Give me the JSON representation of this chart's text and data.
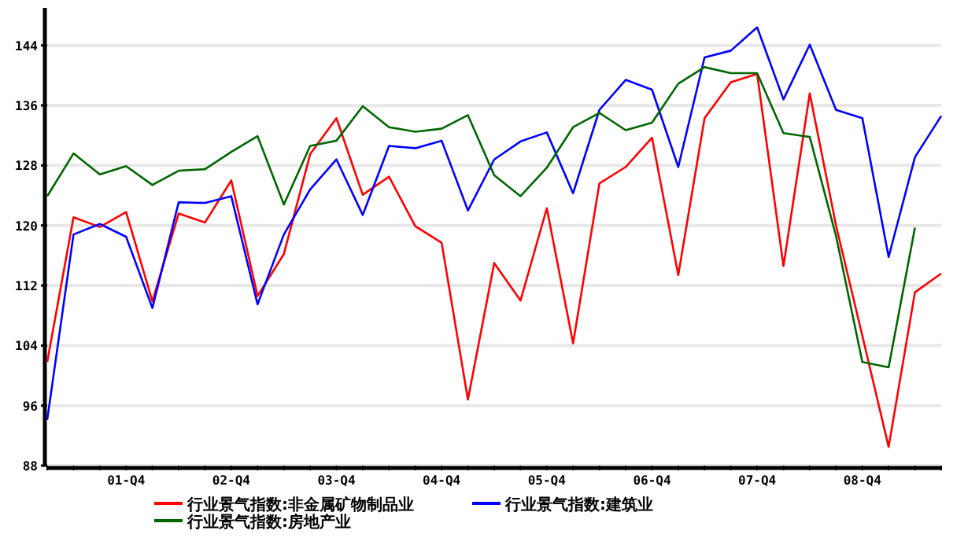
{
  "chart_data": {
    "type": "line",
    "categories": [
      null,
      null,
      null,
      "01-Q4",
      null,
      null,
      null,
      "02-Q4",
      null,
      null,
      null,
      "03-Q4",
      null,
      null,
      null,
      "04-Q4",
      null,
      null,
      null,
      "05-Q4",
      null,
      null,
      null,
      "06-Q4",
      null,
      null,
      null,
      "07-Q4",
      null,
      null,
      null,
      "08-Q4",
      null,
      null,
      null
    ],
    "series": [
      {
        "name": "行业景气指数:非金属矿物制品业",
        "color": "#ff0000",
        "values": [
          101.8,
          121.1,
          119.8,
          121.8,
          109.9,
          121.6,
          120.4,
          126.0,
          110.6,
          116.2,
          129.5,
          134.3,
          124.1,
          126.5,
          119.9,
          117.7,
          96.8,
          115.0,
          110.0,
          122.3,
          104.3,
          125.6,
          127.8,
          131.7,
          113.4,
          134.3,
          139.1,
          140.2,
          114.6,
          137.6,
          120.0,
          105.3,
          90.5,
          111.1,
          113.6
        ]
      },
      {
        "name": "行业景气指数:建筑业",
        "color": "#0000ff",
        "values": [
          94.1,
          118.8,
          120.2,
          118.5,
          109.0,
          123.1,
          123.0,
          123.9,
          109.5,
          118.8,
          124.8,
          128.8,
          121.4,
          130.6,
          130.3,
          131.3,
          122.0,
          128.8,
          131.2,
          132.4,
          124.3,
          135.4,
          139.4,
          138.1,
          127.8,
          142.4,
          143.3,
          146.4,
          136.8,
          144.1,
          135.4,
          134.3,
          115.8,
          129.1,
          134.6
        ]
      },
      {
        "name": "行业景气指数:房地产业",
        "color": "#006600",
        "values": [
          123.9,
          129.6,
          126.8,
          127.9,
          125.4,
          127.3,
          127.5,
          129.8,
          131.9,
          122.8,
          130.6,
          131.3,
          135.9,
          133.1,
          132.5,
          132.9,
          134.7,
          126.7,
          123.9,
          127.7,
          133.1,
          135.0,
          132.7,
          133.7,
          138.9,
          141.1,
          140.3,
          140.3,
          132.3,
          131.8,
          118.6,
          101.8,
          101.1,
          119.7,
          null
        ]
      }
    ],
    "ylim": [
      88,
      149
    ],
    "yticks": [
      88,
      96,
      104,
      112,
      120,
      128,
      136,
      144
    ],
    "grid": "y",
    "legend": "bottom",
    "marker": "none",
    "line_style": "solid"
  }
}
